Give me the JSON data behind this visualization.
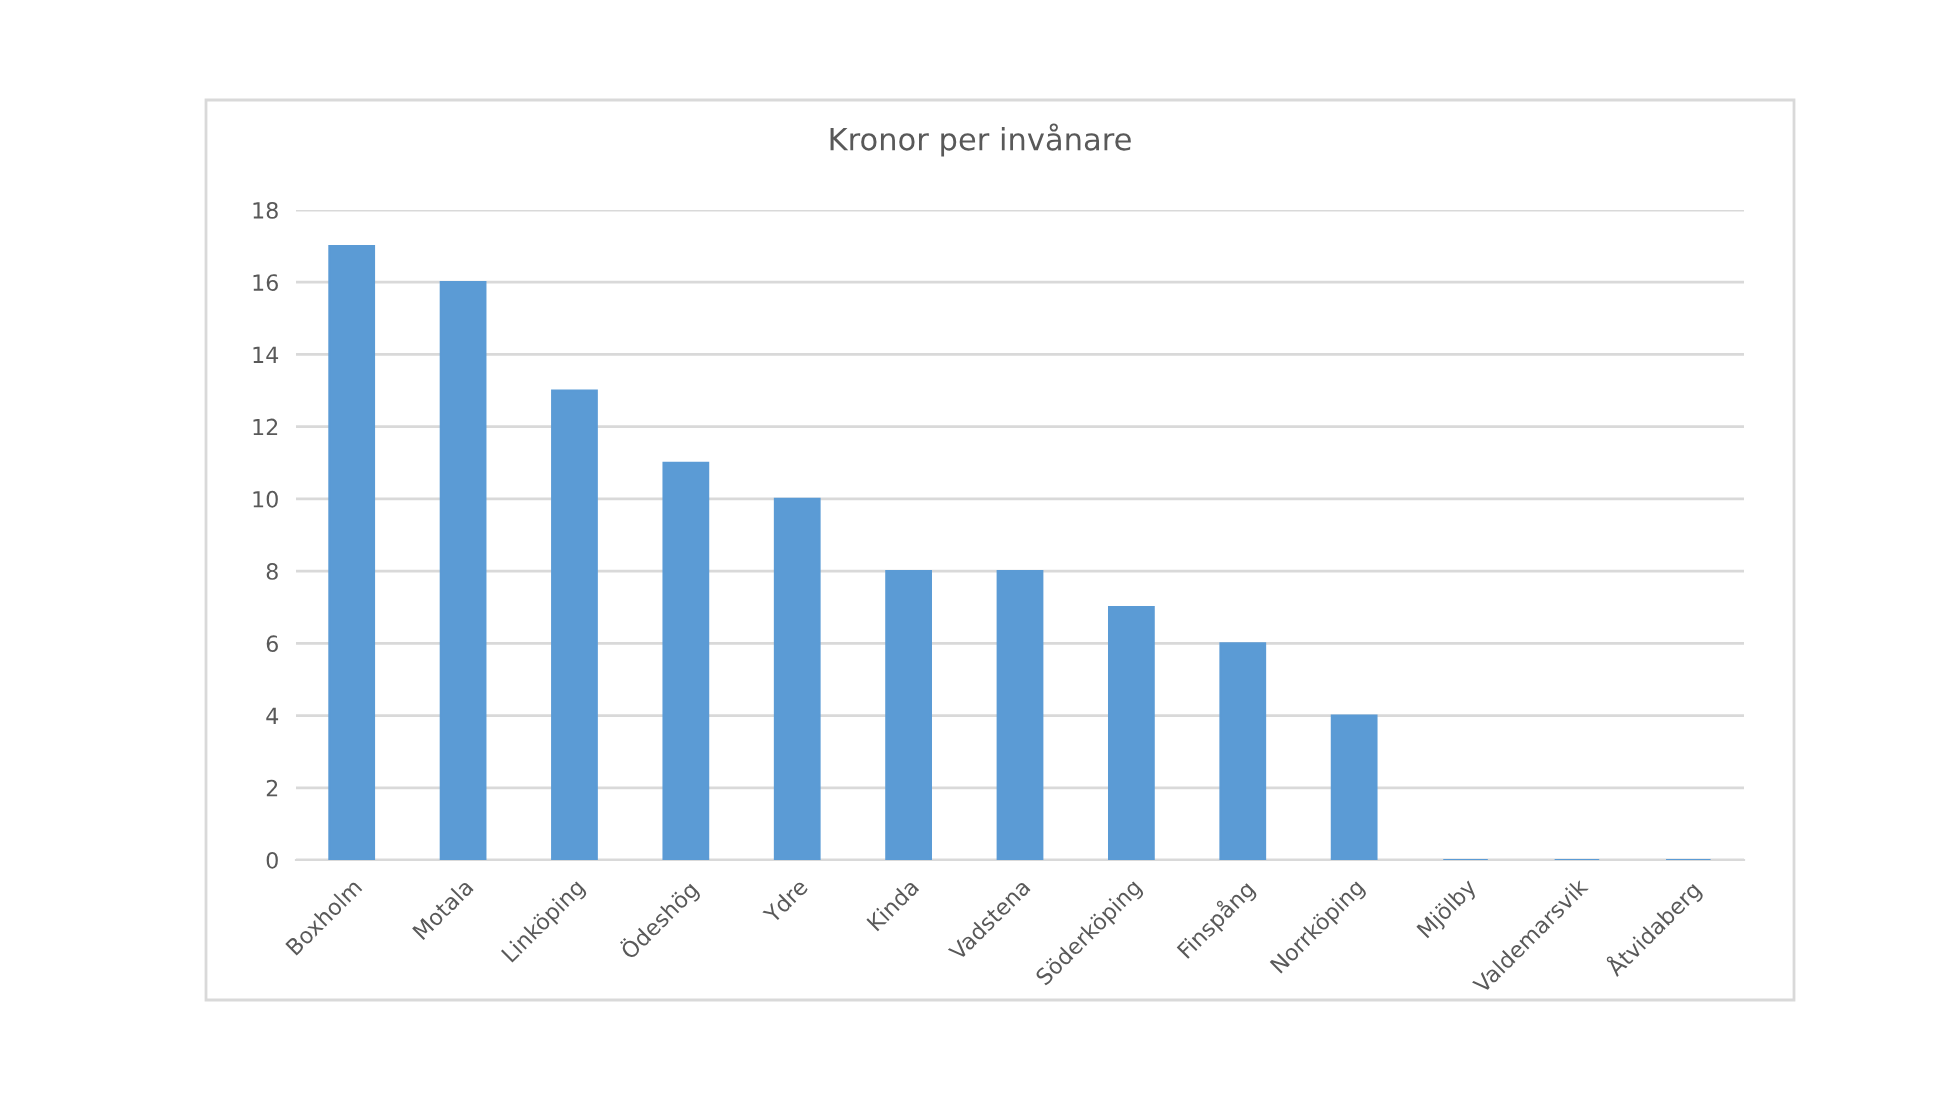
{
  "chart_data": {
    "type": "bar",
    "title": "Kronor per invånare",
    "categories": [
      "Boxholm",
      "Motala",
      "Linköping",
      "Ödeshög",
      "Ydre",
      "Kinda",
      "Vadstena",
      "Söderköping",
      "Finspång",
      "Norrköping",
      "Mjölby",
      "Valdemarsvik",
      "Åtvidaberg"
    ],
    "values": [
      17,
      16,
      13,
      11,
      10,
      8,
      8,
      7,
      6,
      4,
      0,
      0,
      0
    ],
    "color": "#5b9bd5",
    "ylim": [
      0,
      18
    ],
    "yticks": [
      0,
      2,
      4,
      6,
      8,
      10,
      12,
      14,
      16,
      18
    ],
    "grid": "y"
  }
}
